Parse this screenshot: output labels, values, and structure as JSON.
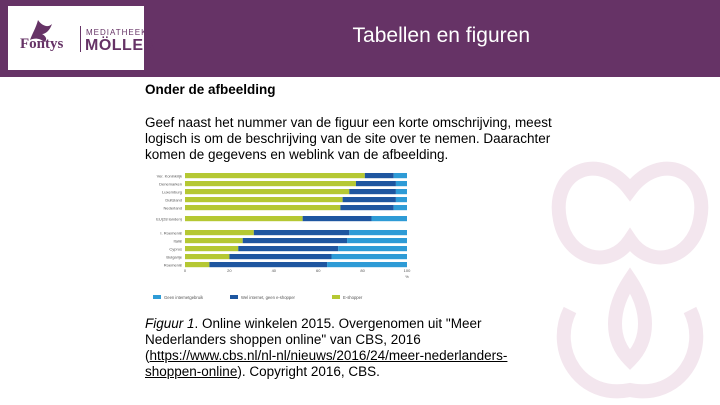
{
  "header": {
    "title": "Tabellen en figuren",
    "logo_fontys": "Fontys",
    "logo_mediatheek": "MEDIATHEEK",
    "logo_moller": "MÖLLER"
  },
  "content": {
    "subheading": "Onder de afbeelding",
    "paragraph": "Geef naast het nummer van de figuur een korte omschrijving, meest logisch is om de beschrijving van de site over te nemen. Daarachter komen de gegevens en weblink van de afbeelding."
  },
  "caption": {
    "label": "Figuur 1",
    "text_before_link": ". Online winkelen 2015. Overgenomen uit \"Meer Nederlanders shoppen online\" van CBS, 2016 (",
    "link": "https://www.cbs.nl/nl-nl/nieuws/2016/24/meer-nederlanders-shoppen-online",
    "text_after_link": "). Copyright 2016, CBS."
  },
  "colors": {
    "header": "#663366",
    "green": "#b5c833",
    "dark_blue": "#1e56a0",
    "light_blue": "#2e9bd6"
  },
  "chart_data": {
    "type": "bar",
    "orientation": "horizontal-stacked",
    "unit": "%",
    "categories": [
      "Ver. Koninkrijk",
      "Denemarken",
      "Luxemburg",
      "Duitsland",
      "Nederland",
      "EU(28 landen)",
      "I. Roemenië",
      "Italië",
      "Cyprus",
      "Bulgarije",
      "Roemenië"
    ],
    "series": [
      {
        "name": "E-shopper",
        "values": [
          81,
          77,
          74,
          71,
          70,
          53,
          31,
          26,
          24,
          20,
          11
        ]
      },
      {
        "name": "Wel internet, geen e-shopper",
        "values": [
          13,
          18,
          21,
          24,
          24,
          31,
          43,
          47,
          45,
          46,
          53
        ]
      },
      {
        "name": "Geen internetgebruik",
        "values": [
          6,
          5,
          5,
          5,
          6,
          16,
          26,
          27,
          31,
          34,
          36
        ]
      }
    ],
    "xlim": [
      0,
      100
    ],
    "xticks": [
      0,
      20,
      40,
      60,
      80,
      100
    ],
    "xunit_label": "%",
    "legend": [
      "Geen internetgebruik",
      "Wel internet, geen e-shopper",
      "E-shopper"
    ],
    "legend_position": "bottom"
  }
}
